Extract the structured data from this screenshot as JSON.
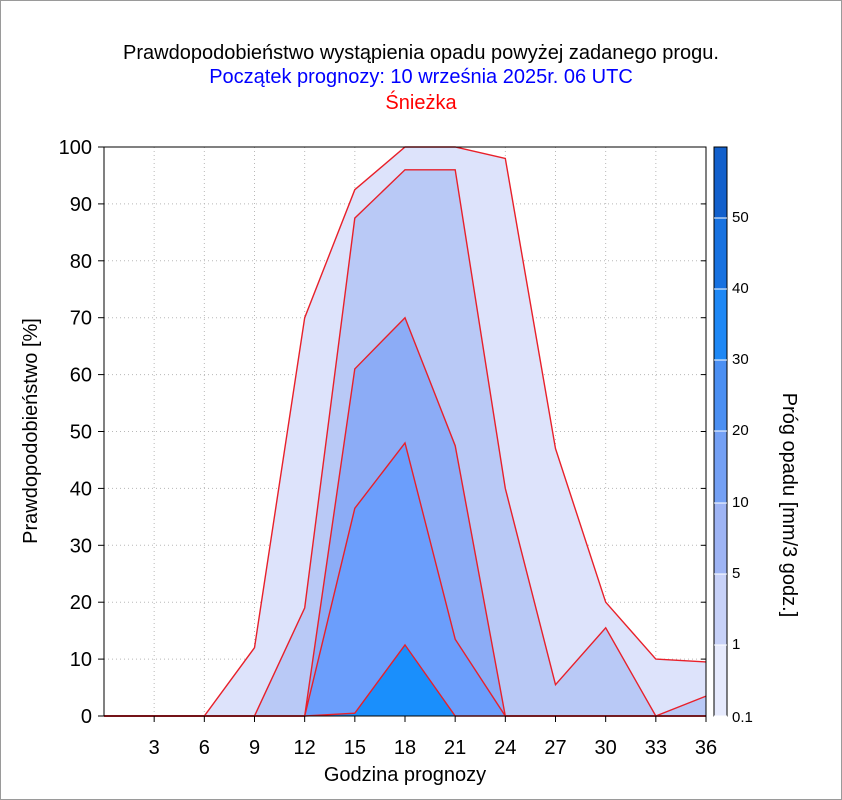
{
  "title": "Prawdopodobieństwo wystąpienia opadu powyżej zadanego progu.",
  "subtitle": "Początek prognozy: 10 września 2025r. 06 UTC",
  "location": "Śnieżka",
  "chart_data": {
    "type": "area",
    "xlabel": "Godzina prognozy",
    "ylabel": "Prawdopodobieństwo [%]",
    "colorbar_label": "Próg opadu [mm/3 godz.]",
    "xlim": [
      0,
      36
    ],
    "ylim": [
      0,
      100
    ],
    "xticks": [
      "3",
      "6",
      "9",
      "12",
      "15",
      "18",
      "21",
      "24",
      "27",
      "30",
      "33",
      "36"
    ],
    "yticks": [
      "0",
      "10",
      "20",
      "30",
      "40",
      "50",
      "60",
      "70",
      "80",
      "90",
      "100"
    ],
    "grid": true,
    "x": [
      0,
      3,
      6,
      9,
      12,
      15,
      18,
      21,
      24,
      27,
      30,
      33,
      36
    ],
    "series": [
      {
        "name": "0.1",
        "color": "#dde3fb",
        "values": [
          0,
          0,
          0,
          12,
          70,
          92.5,
          100,
          100,
          98,
          47,
          20,
          10,
          9.5
        ]
      },
      {
        "name": "1",
        "color": "#b9c9f6",
        "values": [
          0,
          0,
          0,
          0,
          19,
          87.5,
          96,
          96,
          40,
          5.5,
          15.5,
          0,
          3.5
        ]
      },
      {
        "name": "5",
        "color": "#8cacf6",
        "values": [
          0,
          0,
          0,
          0,
          0,
          61,
          70,
          47.5,
          0,
          0,
          0,
          0,
          0
        ]
      },
      {
        "name": "10",
        "color": "#6b9efc",
        "values": [
          0,
          0,
          0,
          0,
          0,
          36.5,
          48,
          13.5,
          0,
          0,
          0,
          0,
          0
        ]
      },
      {
        "name": "20",
        "color": "#1a8ffc",
        "values": [
          0,
          0,
          0,
          0,
          0,
          0.5,
          12.5,
          0,
          0,
          0,
          0,
          0,
          0
        ]
      }
    ],
    "colorbar": {
      "tick_labels": [
        "0.1",
        "1",
        "5",
        "10",
        "20",
        "30",
        "40",
        "50"
      ],
      "colors": [
        "#e6eafd",
        "#c7d1f8",
        "#9eb4f4",
        "#74a0f4",
        "#4b8ff2",
        "#1e88f5",
        "#1872e0",
        "#1260cc",
        "#0a4ab5"
      ]
    }
  }
}
